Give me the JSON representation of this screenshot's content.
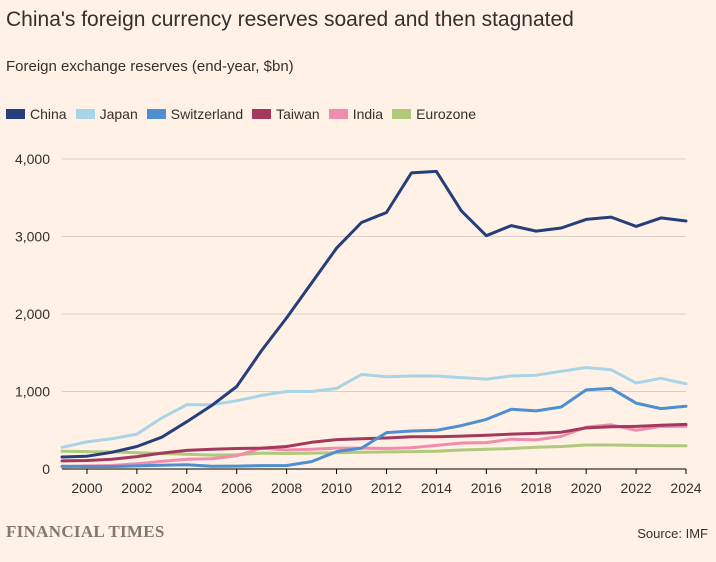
{
  "header": {
    "title": "China's foreign currency reserves soared and then stagnated",
    "subtitle": "Foreign exchange reserves (end-year, $bn)"
  },
  "footer": {
    "brand": "FINANCIAL TIMES",
    "source": "Source: IMF"
  },
  "chart_data": {
    "type": "line",
    "title": "China's foreign currency reserves soared and then stagnated",
    "subtitle": "Foreign exchange reserves (end-year, $bn)",
    "xlabel": "",
    "ylabel": "",
    "x": [
      1999,
      2000,
      2001,
      2002,
      2003,
      2004,
      2005,
      2006,
      2007,
      2008,
      2009,
      2010,
      2011,
      2012,
      2013,
      2014,
      2015,
      2016,
      2017,
      2018,
      2019,
      2020,
      2021,
      2022,
      2023,
      2024
    ],
    "xlim": [
      1999,
      2024
    ],
    "ylim": [
      0,
      4000
    ],
    "x_ticks": [
      "2000",
      "2002",
      "2004",
      "2006",
      "2008",
      "2010",
      "2012",
      "2014",
      "2016",
      "2018",
      "2020",
      "2022",
      "2024"
    ],
    "x_tick_values": [
      2000,
      2002,
      2004,
      2006,
      2008,
      2010,
      2012,
      2014,
      2016,
      2018,
      2020,
      2022,
      2024
    ],
    "y_ticks": [
      "0",
      "1,000",
      "2,000",
      "3,000",
      "4,000"
    ],
    "y_tick_values": [
      0,
      1000,
      2000,
      3000,
      4000
    ],
    "grid": true,
    "legend_position": "top-left",
    "series": [
      {
        "name": "Eurozone",
        "color": "#b1c97d",
        "values": [
          230,
          225,
          220,
          210,
          200,
          190,
          180,
          185,
          205,
          200,
          205,
          210,
          215,
          220,
          225,
          230,
          245,
          255,
          265,
          280,
          290,
          310,
          310,
          305,
          300,
          300
        ]
      },
      {
        "name": "India",
        "color": "#f08cad",
        "values": [
          30,
          40,
          45,
          68,
          98,
          125,
          131,
          170,
          270,
          245,
          255,
          270,
          270,
          265,
          275,
          305,
          335,
          340,
          385,
          375,
          420,
          540,
          570,
          500,
          550,
          550
        ]
      },
      {
        "name": "Taiwan",
        "color": "#a33a5e",
        "values": [
          105,
          110,
          125,
          160,
          205,
          240,
          255,
          265,
          270,
          290,
          345,
          380,
          390,
          400,
          415,
          415,
          425,
          435,
          450,
          460,
          475,
          530,
          545,
          550,
          565,
          575
        ]
      },
      {
        "name": "Switzerland",
        "color": "#4e8fd0",
        "values": [
          36,
          32,
          32,
          40,
          48,
          55,
          36,
          38,
          44,
          45,
          95,
          225,
          270,
          470,
          490,
          500,
          560,
          640,
          770,
          750,
          800,
          1020,
          1040,
          850,
          780,
          810
        ]
      },
      {
        "name": "Japan",
        "color": "#a8d4e8",
        "values": [
          280,
          350,
          390,
          450,
          660,
          830,
          830,
          880,
          950,
          1000,
          1000,
          1040,
          1220,
          1190,
          1200,
          1200,
          1180,
          1160,
          1200,
          1210,
          1260,
          1310,
          1280,
          1110,
          1170,
          1100
        ]
      },
      {
        "name": "China",
        "color": "#263f7a",
        "values": [
          155,
          165,
          215,
          290,
          410,
          610,
          820,
          1065,
          1530,
          1950,
          2400,
          2850,
          3180,
          3310,
          3820,
          3840,
          3330,
          3010,
          3140,
          3070,
          3110,
          3220,
          3250,
          3130,
          3240,
          3200
        ]
      }
    ],
    "legend_order": [
      "China",
      "Japan",
      "Switzerland",
      "Taiwan",
      "India",
      "Eurozone"
    ]
  }
}
